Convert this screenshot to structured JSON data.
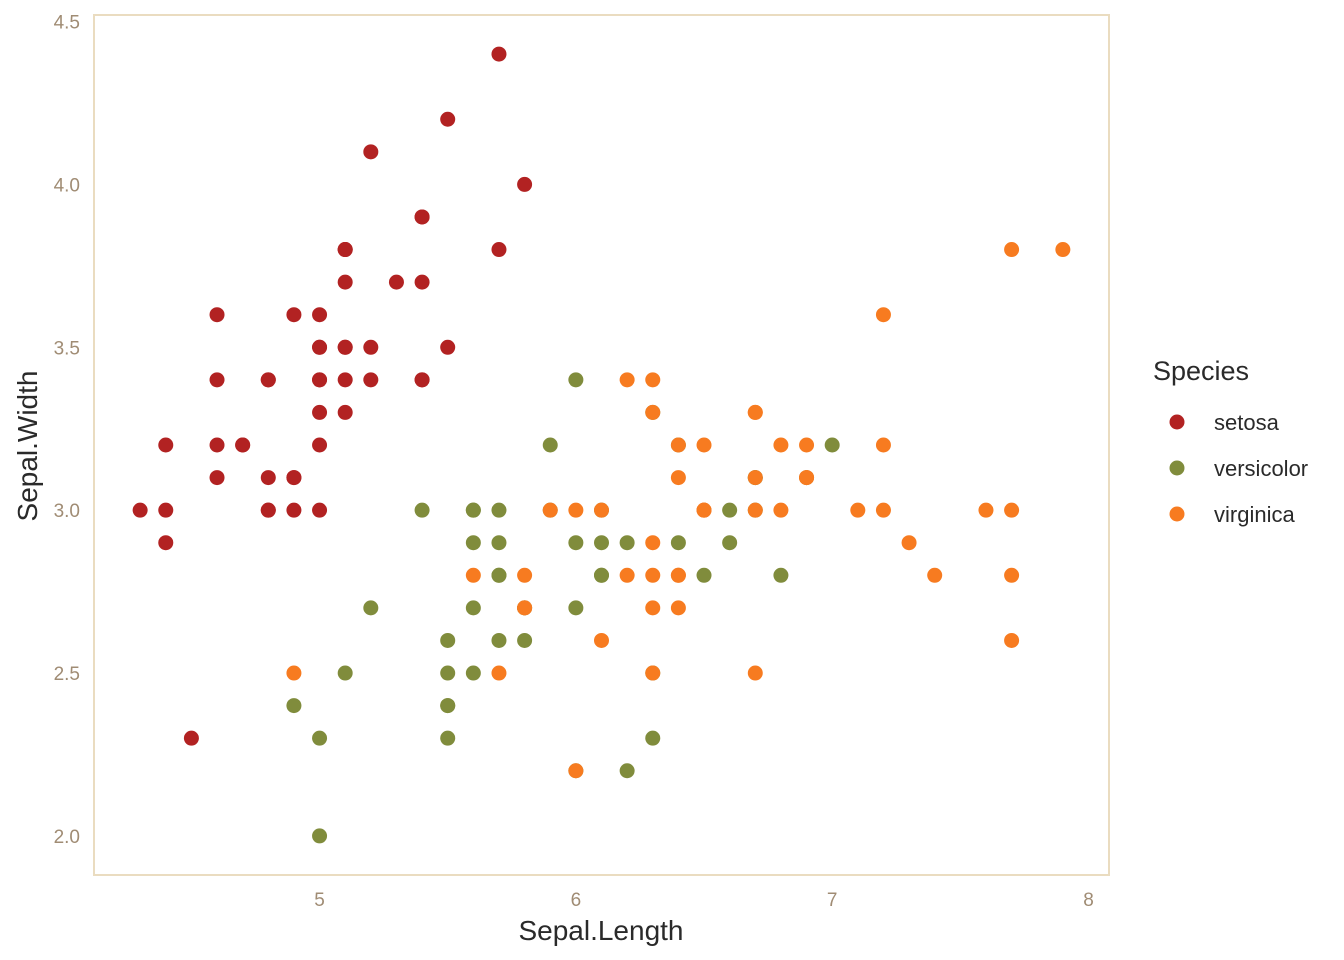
{
  "chart_data": {
    "type": "scatter",
    "xlabel": "Sepal.Length",
    "ylabel": "Sepal.Width",
    "xlim": [
      4.12,
      8.08
    ],
    "ylim": [
      1.88,
      4.52
    ],
    "x_ticks": [
      "5",
      "6",
      "7",
      "8"
    ],
    "x_tick_values": [
      5,
      6,
      7,
      8
    ],
    "y_ticks": [
      "2.0",
      "2.5",
      "3.0",
      "3.5",
      "4.0",
      "4.5"
    ],
    "y_tick_values": [
      2.0,
      2.5,
      3.0,
      3.5,
      4.0,
      4.5
    ],
    "grid": false,
    "panel_border_color": "#eadcc0",
    "legend": {
      "title": "Species",
      "position": "right"
    },
    "series": [
      {
        "name": "setosa",
        "color": "#b22222",
        "points": [
          [
            5.1,
            3.5
          ],
          [
            4.9,
            3.0
          ],
          [
            4.7,
            3.2
          ],
          [
            4.6,
            3.1
          ],
          [
            5.0,
            3.6
          ],
          [
            5.4,
            3.9
          ],
          [
            4.6,
            3.4
          ],
          [
            5.0,
            3.4
          ],
          [
            4.4,
            2.9
          ],
          [
            4.9,
            3.1
          ],
          [
            5.4,
            3.7
          ],
          [
            4.8,
            3.4
          ],
          [
            4.8,
            3.0
          ],
          [
            4.3,
            3.0
          ],
          [
            5.8,
            4.0
          ],
          [
            5.7,
            4.4
          ],
          [
            5.4,
            3.9
          ],
          [
            5.1,
            3.5
          ],
          [
            5.7,
            3.8
          ],
          [
            5.1,
            3.8
          ],
          [
            5.4,
            3.4
          ],
          [
            5.1,
            3.7
          ],
          [
            4.6,
            3.6
          ],
          [
            5.1,
            3.3
          ],
          [
            4.8,
            3.4
          ],
          [
            5.0,
            3.0
          ],
          [
            5.0,
            3.4
          ],
          [
            5.2,
            3.5
          ],
          [
            5.2,
            3.4
          ],
          [
            4.7,
            3.2
          ],
          [
            4.8,
            3.1
          ],
          [
            5.4,
            3.4
          ],
          [
            5.2,
            4.1
          ],
          [
            5.5,
            4.2
          ],
          [
            4.9,
            3.1
          ],
          [
            5.0,
            3.2
          ],
          [
            5.5,
            3.5
          ],
          [
            4.9,
            3.6
          ],
          [
            4.4,
            3.0
          ],
          [
            5.1,
            3.4
          ],
          [
            5.0,
            3.5
          ],
          [
            4.5,
            2.3
          ],
          [
            4.4,
            3.2
          ],
          [
            5.0,
            3.5
          ],
          [
            5.1,
            3.8
          ],
          [
            4.8,
            3.0
          ],
          [
            5.1,
            3.8
          ],
          [
            4.6,
            3.2
          ],
          [
            5.3,
            3.7
          ],
          [
            5.0,
            3.3
          ]
        ]
      },
      {
        "name": "versicolor",
        "color": "#808c3c",
        "points": [
          [
            7.0,
            3.2
          ],
          [
            6.4,
            3.2
          ],
          [
            6.9,
            3.1
          ],
          [
            5.5,
            2.3
          ],
          [
            6.5,
            2.8
          ],
          [
            5.7,
            2.8
          ],
          [
            6.3,
            3.3
          ],
          [
            4.9,
            2.4
          ],
          [
            6.6,
            2.9
          ],
          [
            5.2,
            2.7
          ],
          [
            5.0,
            2.0
          ],
          [
            5.9,
            3.0
          ],
          [
            6.0,
            2.2
          ],
          [
            6.1,
            2.9
          ],
          [
            5.6,
            2.9
          ],
          [
            6.7,
            3.1
          ],
          [
            5.6,
            3.0
          ],
          [
            5.8,
            2.7
          ],
          [
            6.2,
            2.2
          ],
          [
            5.6,
            2.5
          ],
          [
            5.9,
            3.2
          ],
          [
            6.1,
            2.8
          ],
          [
            6.3,
            2.5
          ],
          [
            6.1,
            2.8
          ],
          [
            6.4,
            2.9
          ],
          [
            6.6,
            3.0
          ],
          [
            6.8,
            2.8
          ],
          [
            6.7,
            3.0
          ],
          [
            6.0,
            2.9
          ],
          [
            5.7,
            2.6
          ],
          [
            5.5,
            2.4
          ],
          [
            5.5,
            2.4
          ],
          [
            5.8,
            2.7
          ],
          [
            6.0,
            2.7
          ],
          [
            5.4,
            3.0
          ],
          [
            6.0,
            3.4
          ],
          [
            6.7,
            3.1
          ],
          [
            6.3,
            2.3
          ],
          [
            5.6,
            3.0
          ],
          [
            5.5,
            2.5
          ],
          [
            5.5,
            2.6
          ],
          [
            6.1,
            3.0
          ],
          [
            5.8,
            2.6
          ],
          [
            5.0,
            2.3
          ],
          [
            5.6,
            2.7
          ],
          [
            5.7,
            3.0
          ],
          [
            5.7,
            2.9
          ],
          [
            6.2,
            2.9
          ],
          [
            5.1,
            2.5
          ],
          [
            5.7,
            2.8
          ]
        ]
      },
      {
        "name": "virginica",
        "color": "#f77b20",
        "points": [
          [
            6.3,
            3.3
          ],
          [
            5.8,
            2.7
          ],
          [
            7.1,
            3.0
          ],
          [
            6.3,
            2.9
          ],
          [
            6.5,
            3.0
          ],
          [
            7.6,
            3.0
          ],
          [
            4.9,
            2.5
          ],
          [
            7.3,
            2.9
          ],
          [
            6.7,
            2.5
          ],
          [
            7.2,
            3.6
          ],
          [
            6.5,
            3.2
          ],
          [
            6.4,
            2.7
          ],
          [
            6.8,
            3.0
          ],
          [
            5.7,
            2.5
          ],
          [
            5.8,
            2.8
          ],
          [
            6.4,
            3.2
          ],
          [
            6.5,
            3.0
          ],
          [
            7.7,
            3.8
          ],
          [
            7.7,
            2.6
          ],
          [
            6.0,
            2.2
          ],
          [
            6.9,
            3.2
          ],
          [
            5.6,
            2.8
          ],
          [
            7.7,
            2.8
          ],
          [
            6.3,
            2.7
          ],
          [
            6.7,
            3.3
          ],
          [
            7.2,
            3.2
          ],
          [
            6.2,
            2.8
          ],
          [
            6.1,
            3.0
          ],
          [
            6.4,
            2.8
          ],
          [
            7.2,
            3.0
          ],
          [
            7.4,
            2.8
          ],
          [
            7.9,
            3.8
          ],
          [
            6.4,
            2.8
          ],
          [
            6.3,
            2.8
          ],
          [
            6.1,
            2.6
          ],
          [
            7.7,
            3.0
          ],
          [
            6.3,
            3.4
          ],
          [
            6.4,
            3.1
          ],
          [
            6.0,
            3.0
          ],
          [
            6.9,
            3.1
          ],
          [
            6.7,
            3.1
          ],
          [
            6.9,
            3.1
          ],
          [
            5.8,
            2.7
          ],
          [
            6.8,
            3.2
          ],
          [
            6.7,
            3.3
          ],
          [
            6.7,
            3.0
          ],
          [
            6.3,
            2.5
          ],
          [
            6.5,
            3.0
          ],
          [
            6.2,
            3.4
          ],
          [
            5.9,
            3.0
          ]
        ]
      }
    ]
  }
}
